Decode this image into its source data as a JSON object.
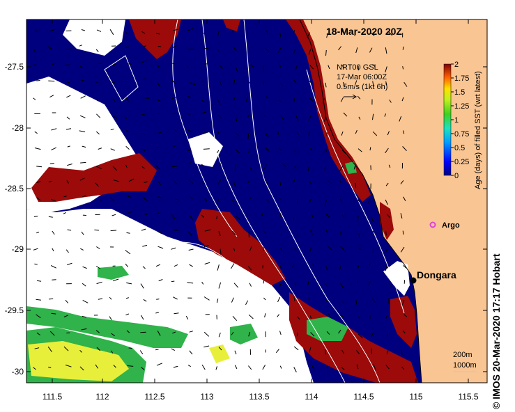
{
  "map": {
    "date_label": "18-Mar-2020 20Z",
    "colors": {
      "ocean": "#00007f",
      "land": "#f9c593",
      "fresh": "#9c0a0a",
      "aged_green": "#2fb34a",
      "aged_yellow": "#e8ef3a",
      "cloud": "#ffffff"
    },
    "lon_ticks": [
      "111.5",
      "112",
      "112.5",
      "113",
      "113.5",
      "114",
      "114.5",
      "115",
      "115.5"
    ],
    "lat_ticks": [
      "-27.5",
      "-28",
      "-28.5",
      "-29",
      "-29.5",
      "-30"
    ],
    "current_legend": {
      "source": "NRT00 GSL",
      "time": "17-Mar 06:00Z",
      "scale": "0.5m/s (1kt 6h)"
    },
    "colorbar": {
      "title": "Age (days) of filled SST (wrt latest)",
      "ticks": [
        "2",
        "1.75",
        "1.5",
        "1.25",
        "1",
        "0.75",
        "0.5",
        "0.25",
        "0"
      ]
    },
    "places": [
      {
        "name": "Argo",
        "type": "float-marker",
        "color": "#e040e0"
      },
      {
        "name": "Dongara",
        "type": "town-marker",
        "color": "#000000"
      }
    ],
    "isobaths": [
      "200m",
      "1000m"
    ],
    "credit": "© IMOS 20-Mar-2020 17:17 Hobart"
  }
}
